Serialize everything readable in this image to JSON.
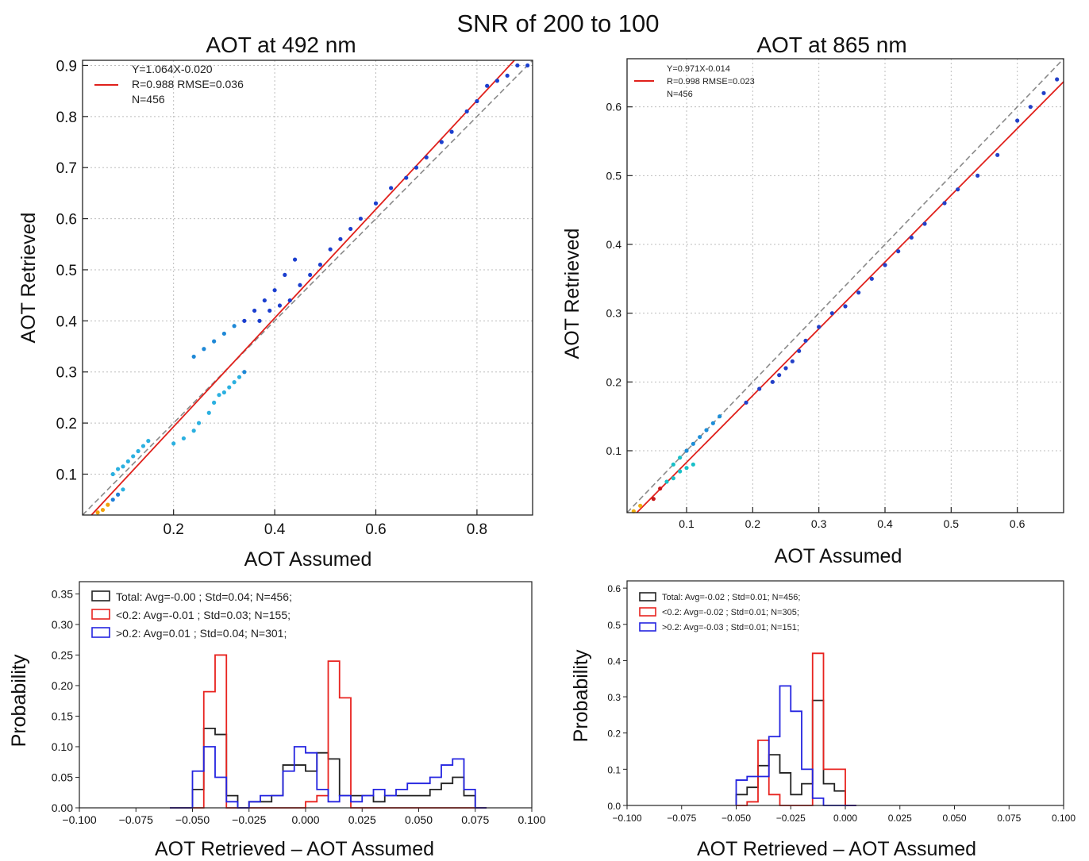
{
  "figure": {
    "suptitle": "SNR of 200 to 100"
  },
  "chart_data": [
    {
      "id": "scatter_492",
      "type": "scatter",
      "title": "AOT at 492 nm",
      "xlabel": "AOT Assumed",
      "ylabel": "AOT Retrieved",
      "xlim": [
        0.02,
        0.91
      ],
      "ylim": [
        0.02,
        0.91
      ],
      "xticks": [
        "0.2",
        "0.4",
        "0.6",
        "0.8"
      ],
      "yticks": [
        "0.1",
        "0.2",
        "0.3",
        "0.4",
        "0.5",
        "0.6",
        "0.7",
        "0.8",
        "0.9"
      ],
      "grid": true,
      "legend_position": "top-left",
      "fit_line": {
        "slope": 1.064,
        "intercept": -0.02,
        "color": "#e0201b"
      },
      "identity_line": true,
      "annotation": [
        "Y=1.064X-0.020",
        "R=0.988  RMSE=0.036",
        "N=456"
      ],
      "points": [
        {
          "x": 0.05,
          "y": 0.025
        },
        {
          "x": 0.06,
          "y": 0.03
        },
        {
          "x": 0.07,
          "y": 0.04
        },
        {
          "x": 0.08,
          "y": 0.05
        },
        {
          "x": 0.09,
          "y": 0.06
        },
        {
          "x": 0.1,
          "y": 0.07
        },
        {
          "x": 0.08,
          "y": 0.1
        },
        {
          "x": 0.09,
          "y": 0.11
        },
        {
          "x": 0.1,
          "y": 0.115
        },
        {
          "x": 0.11,
          "y": 0.125
        },
        {
          "x": 0.12,
          "y": 0.135
        },
        {
          "x": 0.13,
          "y": 0.145
        },
        {
          "x": 0.14,
          "y": 0.155
        },
        {
          "x": 0.15,
          "y": 0.165
        },
        {
          "x": 0.2,
          "y": 0.16
        },
        {
          "x": 0.22,
          "y": 0.17
        },
        {
          "x": 0.24,
          "y": 0.185
        },
        {
          "x": 0.25,
          "y": 0.2
        },
        {
          "x": 0.27,
          "y": 0.22
        },
        {
          "x": 0.28,
          "y": 0.24
        },
        {
          "x": 0.29,
          "y": 0.255
        },
        {
          "x": 0.3,
          "y": 0.26
        },
        {
          "x": 0.31,
          "y": 0.27
        },
        {
          "x": 0.32,
          "y": 0.28
        },
        {
          "x": 0.33,
          "y": 0.29
        },
        {
          "x": 0.34,
          "y": 0.3
        },
        {
          "x": 0.24,
          "y": 0.33
        },
        {
          "x": 0.26,
          "y": 0.345
        },
        {
          "x": 0.28,
          "y": 0.36
        },
        {
          "x": 0.3,
          "y": 0.375
        },
        {
          "x": 0.32,
          "y": 0.39
        },
        {
          "x": 0.34,
          "y": 0.4
        },
        {
          "x": 0.36,
          "y": 0.42
        },
        {
          "x": 0.38,
          "y": 0.44
        },
        {
          "x": 0.4,
          "y": 0.46
        },
        {
          "x": 0.42,
          "y": 0.49
        },
        {
          "x": 0.44,
          "y": 0.52
        },
        {
          "x": 0.37,
          "y": 0.4
        },
        {
          "x": 0.39,
          "y": 0.42
        },
        {
          "x": 0.41,
          "y": 0.43
        },
        {
          "x": 0.43,
          "y": 0.44
        },
        {
          "x": 0.45,
          "y": 0.47
        },
        {
          "x": 0.47,
          "y": 0.49
        },
        {
          "x": 0.49,
          "y": 0.51
        },
        {
          "x": 0.51,
          "y": 0.54
        },
        {
          "x": 0.53,
          "y": 0.56
        },
        {
          "x": 0.55,
          "y": 0.58
        },
        {
          "x": 0.57,
          "y": 0.6
        },
        {
          "x": 0.6,
          "y": 0.63
        },
        {
          "x": 0.63,
          "y": 0.66
        },
        {
          "x": 0.66,
          "y": 0.68
        },
        {
          "x": 0.68,
          "y": 0.7
        },
        {
          "x": 0.7,
          "y": 0.72
        },
        {
          "x": 0.73,
          "y": 0.75
        },
        {
          "x": 0.75,
          "y": 0.77
        },
        {
          "x": 0.78,
          "y": 0.81
        },
        {
          "x": 0.8,
          "y": 0.83
        },
        {
          "x": 0.82,
          "y": 0.86
        },
        {
          "x": 0.84,
          "y": 0.87
        },
        {
          "x": 0.86,
          "y": 0.88
        },
        {
          "x": 0.88,
          "y": 0.9
        },
        {
          "x": 0.9,
          "y": 0.9
        }
      ]
    },
    {
      "id": "scatter_865",
      "type": "scatter",
      "title": "AOT at 865 nm",
      "xlabel": "AOT Assumed",
      "ylabel": "AOT Retrieved",
      "xlim": [
        0.01,
        0.67
      ],
      "ylim": [
        0.01,
        0.67
      ],
      "xticks": [
        "0.1",
        "0.2",
        "0.3",
        "0.4",
        "0.5",
        "0.6"
      ],
      "yticks": [
        "0.1",
        "0.2",
        "0.3",
        "0.4",
        "0.5",
        "0.6"
      ],
      "grid": true,
      "legend_position": "top-left",
      "fit_line": {
        "slope": 0.971,
        "intercept": -0.014,
        "color": "#e0201b"
      },
      "identity_line": true,
      "annotation": [
        "Y=0.971X-0.014",
        "R=0.998  RMSE=0.023",
        "N=456"
      ],
      "points": [
        {
          "x": 0.02,
          "y": 0.012
        },
        {
          "x": 0.03,
          "y": 0.02
        },
        {
          "x": 0.05,
          "y": 0.03
        },
        {
          "x": 0.06,
          "y": 0.045
        },
        {
          "x": 0.07,
          "y": 0.055
        },
        {
          "x": 0.08,
          "y": 0.06
        },
        {
          "x": 0.09,
          "y": 0.07
        },
        {
          "x": 0.1,
          "y": 0.075
        },
        {
          "x": 0.11,
          "y": 0.08
        },
        {
          "x": 0.08,
          "y": 0.08
        },
        {
          "x": 0.09,
          "y": 0.09
        },
        {
          "x": 0.1,
          "y": 0.1
        },
        {
          "x": 0.11,
          "y": 0.11
        },
        {
          "x": 0.12,
          "y": 0.12
        },
        {
          "x": 0.13,
          "y": 0.13
        },
        {
          "x": 0.14,
          "y": 0.14
        },
        {
          "x": 0.15,
          "y": 0.15
        },
        {
          "x": 0.19,
          "y": 0.17
        },
        {
          "x": 0.21,
          "y": 0.19
        },
        {
          "x": 0.23,
          "y": 0.2
        },
        {
          "x": 0.24,
          "y": 0.21
        },
        {
          "x": 0.25,
          "y": 0.22
        },
        {
          "x": 0.26,
          "y": 0.23
        },
        {
          "x": 0.27,
          "y": 0.245
        },
        {
          "x": 0.28,
          "y": 0.26
        },
        {
          "x": 0.3,
          "y": 0.28
        },
        {
          "x": 0.32,
          "y": 0.3
        },
        {
          "x": 0.34,
          "y": 0.31
        },
        {
          "x": 0.36,
          "y": 0.33
        },
        {
          "x": 0.38,
          "y": 0.35
        },
        {
          "x": 0.4,
          "y": 0.37
        },
        {
          "x": 0.42,
          "y": 0.39
        },
        {
          "x": 0.44,
          "y": 0.41
        },
        {
          "x": 0.46,
          "y": 0.43
        },
        {
          "x": 0.49,
          "y": 0.46
        },
        {
          "x": 0.51,
          "y": 0.48
        },
        {
          "x": 0.54,
          "y": 0.5
        },
        {
          "x": 0.57,
          "y": 0.53
        },
        {
          "x": 0.6,
          "y": 0.58
        },
        {
          "x": 0.62,
          "y": 0.6
        },
        {
          "x": 0.64,
          "y": 0.62
        },
        {
          "x": 0.66,
          "y": 0.64
        }
      ]
    },
    {
      "id": "hist_492",
      "type": "histogram",
      "xlabel": "AOT Retrieved – AOT Assumed",
      "ylabel": "Probability",
      "xlim": [
        -0.1,
        0.1
      ],
      "ylim": [
        0,
        0.37
      ],
      "xticks": [
        "−0.100",
        "−0.075",
        "−0.050",
        "−0.025",
        "0.000",
        "0.025",
        "0.050",
        "0.075",
        "0.100"
      ],
      "yticks": [
        "0.00",
        "0.05",
        "0.10",
        "0.15",
        "0.20",
        "0.25",
        "0.30",
        "0.35"
      ],
      "legend_position": "top-left",
      "bin_edges": [
        -0.06,
        -0.055,
        -0.05,
        -0.045,
        -0.04,
        -0.035,
        -0.03,
        -0.025,
        -0.02,
        -0.015,
        -0.01,
        -0.005,
        0.0,
        0.005,
        0.01,
        0.015,
        0.02,
        0.025,
        0.03,
        0.035,
        0.04,
        0.045,
        0.05,
        0.055,
        0.06,
        0.065,
        0.07,
        0.075,
        0.08
      ],
      "series": [
        {
          "name": "Total: Avg=-0.00 ; Std=0.04; N=456;",
          "color": "#222222",
          "values": [
            0.0,
            0.0,
            0.03,
            0.13,
            0.12,
            0.02,
            0.0,
            0.01,
            0.01,
            0.02,
            0.07,
            0.07,
            0.06,
            0.09,
            0.08,
            0.02,
            0.02,
            0.02,
            0.01,
            0.02,
            0.02,
            0.02,
            0.02,
            0.03,
            0.04,
            0.05,
            0.02,
            0.0
          ]
        },
        {
          "name": "<0.2: Avg=-0.01 ; Std=0.03; N=155;",
          "color": "#e8231f",
          "values": [
            0.0,
            0.0,
            0.0,
            0.19,
            0.25,
            0.0,
            0.0,
            0.0,
            0.0,
            0.0,
            0.0,
            0.0,
            0.01,
            0.02,
            0.24,
            0.18,
            0.0,
            0.0,
            0.0,
            0.0,
            0.0,
            0.0,
            0.0,
            0.0,
            0.0,
            0.0,
            0.0,
            0.0
          ]
        },
        {
          "name": ">0.2: Avg=0.01 ; Std=0.04; N=301;",
          "color": "#2424e0",
          "values": [
            0.0,
            0.0,
            0.06,
            0.1,
            0.05,
            0.01,
            0.0,
            0.01,
            0.02,
            0.02,
            0.06,
            0.1,
            0.09,
            0.03,
            0.01,
            0.02,
            0.01,
            0.02,
            0.03,
            0.02,
            0.03,
            0.04,
            0.04,
            0.05,
            0.07,
            0.08,
            0.03,
            0.0
          ]
        }
      ]
    },
    {
      "id": "hist_865",
      "type": "histogram",
      "xlabel": "AOT Retrieved – AOT Assumed",
      "ylabel": "Probability",
      "xlim": [
        -0.1,
        0.1
      ],
      "ylim": [
        0,
        0.62
      ],
      "xticks": [
        "−0.100",
        "−0.075",
        "−0.050",
        "−0.025",
        "0.000",
        "0.025",
        "0.050",
        "0.075",
        "0.100"
      ],
      "yticks": [
        "0.0",
        "0.1",
        "0.2",
        "0.3",
        "0.4",
        "0.5",
        "0.6"
      ],
      "legend_position": "top-left",
      "bin_edges": [
        -0.05,
        -0.045,
        -0.04,
        -0.035,
        -0.03,
        -0.025,
        -0.02,
        -0.015,
        -0.01,
        -0.005,
        0.0,
        0.005
      ],
      "series": [
        {
          "name": "Total: Avg=-0.02 ; Std=0.01; N=456;",
          "color": "#222222",
          "values": [
            0.03,
            0.05,
            0.11,
            0.14,
            0.09,
            0.03,
            0.06,
            0.29,
            0.06,
            0.04,
            0.0
          ]
        },
        {
          "name": "<0.2: Avg=-0.02 ; Std=0.01; N=305;",
          "color": "#e8231f",
          "values": [
            0.0,
            0.01,
            0.18,
            0.03,
            0.0,
            0.0,
            0.0,
            0.42,
            0.1,
            0.1,
            0.0
          ]
        },
        {
          "name": ">0.2: Avg=-0.03 ; Std=0.01; N=151;",
          "color": "#2424e0",
          "values": [
            0.07,
            0.08,
            0.08,
            0.19,
            0.33,
            0.26,
            0.1,
            0.02,
            0.0,
            0.0,
            0.0
          ]
        }
      ]
    }
  ]
}
